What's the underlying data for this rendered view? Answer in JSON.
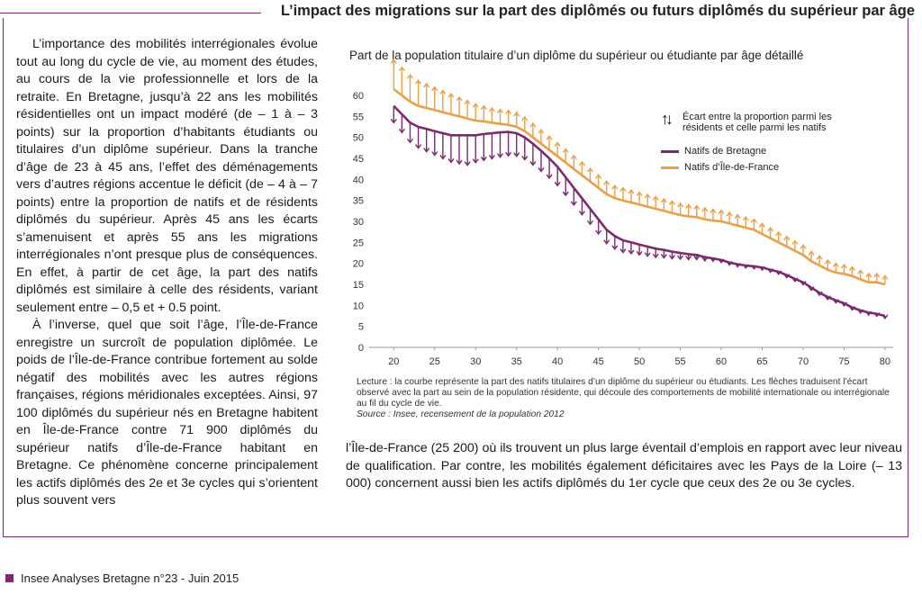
{
  "header": {
    "title": "L’impact des migrations sur la part des diplômés ou futurs diplômés du supérieur par âge"
  },
  "left_column": {
    "paragraph_1": "L’importance des mobilités interrégionales évolue tout au long du cycle de vie, au moment des études, au cours de la vie professionnelle et lors de la retraite. En Bretagne, jusqu’à 22 ans les mobilités résidentielles ont un impact modéré (de – 1 à – 3 points) sur la proportion d’habitants étudiants ou titulaires d’un diplôme supérieur. Dans la tranche d’âge de 23 à 45 ans, l’effet des déménagements vers d’autres régions accentue le déficit (de – 4 à – 7 points) entre la proportion de natifs et de résidents diplômés du supérieur. Après 45 ans les écarts s’amenuisent et après 55 ans les migrations interrégionales n’ont presque plus de conséquences. En effet, à partir de cet âge, la part des natifs diplômés est similaire à celle des résidents, variant seulement entre – 0,5 et + 0.5 point.",
    "paragraph_2": "À l’inverse, quel que soit l’âge, l’Île-de-France enregistre un surcroît de population diplômée. Le poids de l’Île-de-France contribue fortement au solde négatif des mobilités avec les autres régions françaises, régions méridionales exceptées. Ainsi, 97 100 diplômés du supérieur nés en Bretagne habitent en Île-de-France contre 71 900 diplômés du supérieur natifs d’Île-de-France habitant en Bretagne. Ce phénomène concerne principalement les actifs diplômés des 2e et 3e cycles qui s’orientent plus souvent vers"
  },
  "chart": {
    "title": "Part de la population titulaire d’un diplôme du supérieur ou étudiante par âge détaillé",
    "legend_note": "Écart entre la proportion parmi les résidents et celle parmi les natifs",
    "legend_arrow_icon": "up-down-arrows-icon",
    "note_lecture": "Lecture : la courbe représente la part des natifs titulaires d’un diplôme du supérieur ou étudiants. Les flèches traduisent l’écart observé avec la part au sein de la population résidente, qui découle des comportements de mobilité internationale ou interrégionale au fil du cycle de vie.",
    "note_source": "Source : Insee, recensement de la population 2012"
  },
  "chart_data": {
    "type": "line",
    "title": "Part de la population titulaire d’un diplôme du supérieur ou étudiante par âge détaillé",
    "xlabel": "",
    "ylabel": "",
    "xlim": [
      17,
      81
    ],
    "ylim": [
      0,
      60
    ],
    "x_ticks": [
      20,
      25,
      30,
      35,
      40,
      45,
      50,
      55,
      60,
      65,
      70,
      75,
      80
    ],
    "y_ticks": [
      0,
      5,
      10,
      15,
      20,
      25,
      30,
      35,
      40,
      45,
      50,
      55,
      60
    ],
    "grid": false,
    "legend_position": "top-right",
    "x": [
      20,
      21,
      22,
      23,
      24,
      25,
      26,
      27,
      28,
      29,
      30,
      31,
      32,
      33,
      34,
      35,
      36,
      37,
      38,
      39,
      40,
      41,
      42,
      43,
      44,
      45,
      46,
      47,
      48,
      49,
      50,
      51,
      52,
      53,
      54,
      55,
      56,
      57,
      58,
      59,
      60,
      61,
      62,
      63,
      64,
      65,
      66,
      67,
      68,
      69,
      70,
      71,
      72,
      73,
      74,
      75,
      76,
      77,
      78,
      79,
      80
    ],
    "series": [
      {
        "name": "Natifs de Bretagne",
        "color": "#7a2a6e",
        "values": [
          57.5,
          55.5,
          53.5,
          52.5,
          52.0,
          51.5,
          51.0,
          50.5,
          50.5,
          50.5,
          50.5,
          50.8,
          51.0,
          51.2,
          51.3,
          51.0,
          50.0,
          48.5,
          46.8,
          45.0,
          43.0,
          40.5,
          38.0,
          35.5,
          33.0,
          30.5,
          28.0,
          26.5,
          25.5,
          25.0,
          24.5,
          24.0,
          23.5,
          23.2,
          22.8,
          22.5,
          22.2,
          22.0,
          21.5,
          21.2,
          20.8,
          20.2,
          19.8,
          19.5,
          19.3,
          19.0,
          18.5,
          18.0,
          17.2,
          16.3,
          15.5,
          14.2,
          13.0,
          12.0,
          11.2,
          10.5,
          9.5,
          8.8,
          8.3,
          8.0,
          7.5
        ]
      },
      {
        "name": "Natifs d’Île-de-France",
        "color": "#e8a04a",
        "values": [
          61.5,
          60.0,
          58.5,
          57.5,
          57.0,
          56.5,
          56.0,
          55.5,
          55.0,
          54.5,
          54.0,
          53.8,
          53.5,
          53.2,
          53.0,
          52.5,
          51.5,
          50.0,
          48.5,
          47.0,
          45.5,
          44.0,
          42.5,
          41.0,
          39.5,
          38.0,
          36.5,
          35.5,
          35.0,
          34.5,
          34.0,
          33.5,
          33.0,
          32.5,
          32.0,
          31.5,
          31.2,
          31.0,
          30.5,
          30.2,
          30.0,
          29.5,
          29.0,
          28.5,
          28.0,
          27.0,
          26.0,
          25.0,
          24.0,
          23.0,
          22.0,
          20.5,
          19.5,
          18.5,
          17.8,
          17.5,
          17.0,
          16.2,
          15.5,
          15.5,
          15.0
        ]
      }
    ]
  },
  "right_text": {
    "paragraph": "l’Île-de-France (25 200) où ils trouvent un plus large éventail d’emplois en rapport avec leur niveau de qualification. Par contre, les mobilités également déficitaires avec les Pays de la Loire (– 13 000) concernent aussi bien les actifs diplômés du 1er cycle que ceux des 2e ou 3e cycles."
  },
  "footer": {
    "text": "Insee Analyses Bretagne n°23 - Juin 2015"
  }
}
